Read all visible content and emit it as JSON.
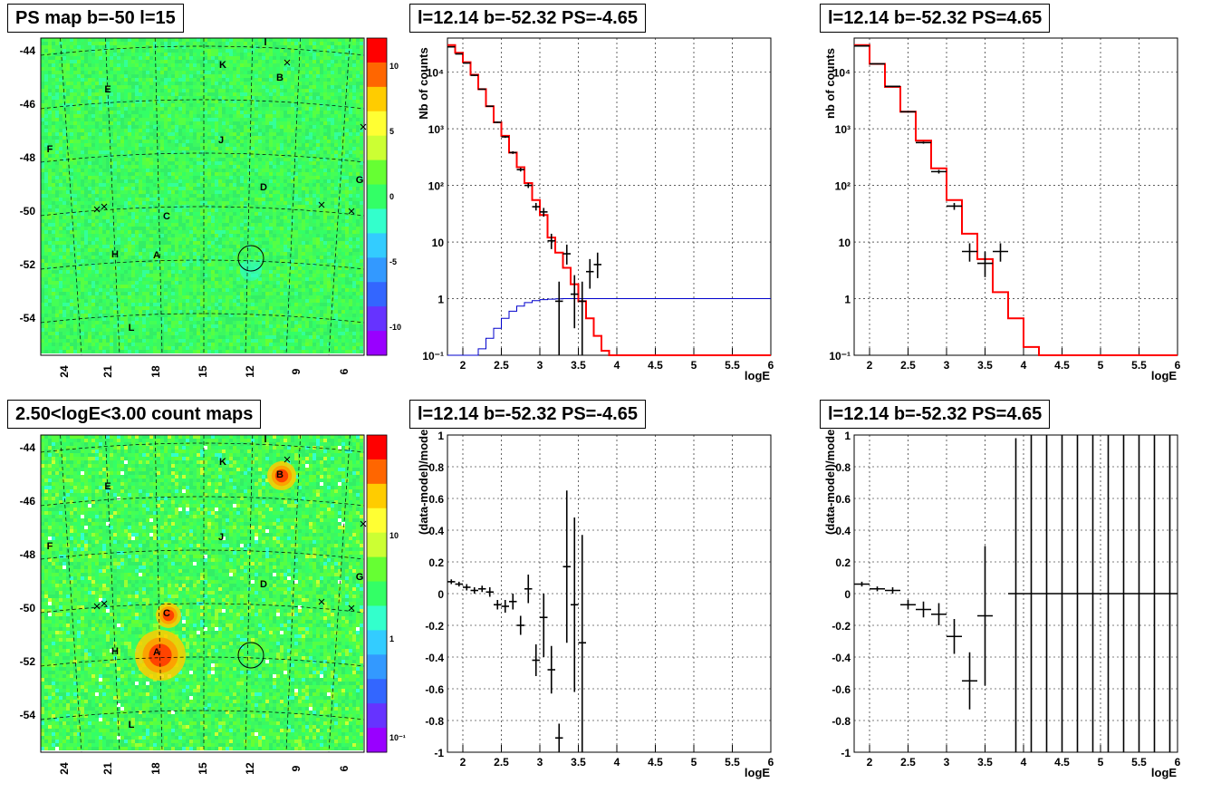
{
  "titles": {
    "map_ps": "PS map b=-50 l=15",
    "map_counts": "2.50<logE<3.00 count maps",
    "spec_neg": "l=12.14 b=-52.32 PS=-4.65",
    "spec_pos": "l=12.14 b=-52.32 PS=4.65",
    "res_neg": "l=12.14 b=-52.32 PS=-4.65",
    "res_pos": "l=12.14 b=-52.32 PS=4.65"
  },
  "maps": {
    "lat_ticks": [
      "-44",
      "-46",
      "-48",
      "-50",
      "-52",
      "-54"
    ],
    "lon_ticks": [
      "24",
      "21",
      "18",
      "15",
      "12",
      "9",
      "6"
    ],
    "source_labels": [
      "I",
      "K",
      "B",
      "E",
      "F",
      "J",
      "D",
      "G",
      "C",
      "H",
      "A",
      "L"
    ],
    "ps_colorbar_ticks": [
      "10",
      "5",
      "0",
      "-5",
      "-10"
    ],
    "ps_colorbar_colors": [
      "#ff0000",
      "#ff6600",
      "#ffcc00",
      "#ffff33",
      "#ccff33",
      "#66ff33",
      "#33ff66",
      "#33ffcc",
      "#33ccff",
      "#3399ff",
      "#3366ff",
      "#6633ff",
      "#9900ff"
    ],
    "count_colorbar_ticks": [
      "10",
      "1",
      "10⁻¹"
    ],
    "count_colorbar_colors": [
      "#ff0000",
      "#ff6600",
      "#ffcc00",
      "#ffff33",
      "#ccff33",
      "#66ff33",
      "#33ff66",
      "#33ffcc",
      "#33ccff",
      "#3399ff",
      "#3366ff",
      "#6633ff",
      "#9900ff"
    ],
    "background_color": "#33ff66"
  },
  "chart_data": [
    {
      "type": "line",
      "panel": "spectrum-ps-negative",
      "title": "l=12.14 b=-52.32 PS=-4.65",
      "xlabel": "logE",
      "ylabel": "Nb of counts",
      "ylog": true,
      "xlim": [
        1.8,
        6.0
      ],
      "ylim": [
        0.1,
        40000
      ],
      "x_ticks": [
        "2",
        "2.5",
        "3",
        "3.5",
        "4",
        "4.5",
        "5",
        "5.5",
        "6"
      ],
      "y_ticks": [
        "10⁻¹",
        "1",
        "10",
        "10²",
        "10³",
        "10⁴"
      ],
      "grid": true,
      "model_red": {
        "edges": [
          1.8,
          1.9,
          2.0,
          2.1,
          2.2,
          2.3,
          2.4,
          2.5,
          2.6,
          2.7,
          2.8,
          2.9,
          3.0,
          3.1,
          3.2,
          3.3,
          3.4,
          3.5,
          3.6,
          3.7,
          3.8,
          3.9,
          4.0,
          6.0
        ],
        "values": [
          30000,
          22000,
          15000,
          9000,
          5000,
          2500,
          1300,
          750,
          380,
          210,
          110,
          55,
          30,
          12,
          6.5,
          3.5,
          1.8,
          0.9,
          0.45,
          0.22,
          0.12,
          0.1,
          0.1
        ]
      },
      "model_blue": {
        "edges": [
          1.8,
          2.1,
          2.2,
          2.3,
          2.4,
          2.5,
          2.6,
          2.7,
          2.8,
          2.9,
          3.0,
          3.1,
          3.2,
          3.3,
          3.4,
          6.0
        ],
        "values": [
          0.1,
          0.1,
          0.13,
          0.2,
          0.3,
          0.45,
          0.6,
          0.74,
          0.85,
          0.92,
          0.96,
          0.98,
          0.99,
          1.0,
          1.0
        ]
      },
      "data_points": [
        {
          "x": 1.85,
          "y": 28000,
          "ylo": 27500,
          "yhi": 28500
        },
        {
          "x": 1.95,
          "y": 21000,
          "ylo": 20600,
          "yhi": 21400
        },
        {
          "x": 2.05,
          "y": 14500,
          "ylo": 14200,
          "yhi": 14800
        },
        {
          "x": 2.15,
          "y": 8800,
          "ylo": 8600,
          "yhi": 9000
        },
        {
          "x": 2.25,
          "y": 5000,
          "ylo": 4900,
          "yhi": 5100
        },
        {
          "x": 2.35,
          "y": 2500,
          "ylo": 2450,
          "yhi": 2550
        },
        {
          "x": 2.45,
          "y": 1300,
          "ylo": 1260,
          "yhi": 1340
        },
        {
          "x": 2.55,
          "y": 720,
          "ylo": 690,
          "yhi": 750
        },
        {
          "x": 2.65,
          "y": 380,
          "ylo": 360,
          "yhi": 400
        },
        {
          "x": 2.75,
          "y": 190,
          "ylo": 176,
          "yhi": 204
        },
        {
          "x": 2.85,
          "y": 100,
          "ylo": 90,
          "yhi": 110
        },
        {
          "x": 2.95,
          "y": 42,
          "ylo": 36,
          "yhi": 49
        },
        {
          "x": 3.05,
          "y": 34,
          "ylo": 28,
          "yhi": 40
        },
        {
          "x": 3.15,
          "y": 10.5,
          "ylo": 7.5,
          "yhi": 14
        },
        {
          "x": 3.25,
          "y": 0.9,
          "ylo": 0.1,
          "yhi": 2.0
        },
        {
          "x": 3.35,
          "y": 6.2,
          "ylo": 4,
          "yhi": 9
        },
        {
          "x": 3.45,
          "y": 1.2,
          "ylo": 0.3,
          "yhi": 2.6
        },
        {
          "x": 3.55,
          "y": 0.9,
          "ylo": 0.1,
          "yhi": 2.0
        },
        {
          "x": 3.65,
          "y": 3.0,
          "ylo": 1.5,
          "yhi": 5
        },
        {
          "x": 3.75,
          "y": 4.0,
          "ylo": 2.3,
          "yhi": 6.5
        }
      ]
    },
    {
      "type": "line",
      "panel": "spectrum-ps-positive",
      "title": "l=12.14 b=-52.32 PS=4.65",
      "xlabel": "logE",
      "ylabel": "nb of counts",
      "ylog": true,
      "xlim": [
        1.8,
        6.0
      ],
      "ylim": [
        0.1,
        40000
      ],
      "x_ticks": [
        "2",
        "2.5",
        "3",
        "3.5",
        "4",
        "4.5",
        "5",
        "5.5",
        "6"
      ],
      "y_ticks": [
        "10⁻¹",
        "1",
        "10",
        "10²",
        "10³",
        "10⁴"
      ],
      "grid": true,
      "model_red": {
        "edges": [
          1.8,
          2.0,
          2.2,
          2.4,
          2.6,
          2.8,
          3.0,
          3.2,
          3.4,
          3.6,
          3.8,
          4.0,
          4.2,
          6.0
        ],
        "values": [
          30000,
          14000,
          5500,
          2000,
          620,
          200,
          55,
          14,
          5,
          1.3,
          0.45,
          0.14,
          0.1
        ]
      },
      "data_points": [
        {
          "x": 1.9,
          "y": 29000,
          "ylo": 28500,
          "yhi": 29500
        },
        {
          "x": 2.1,
          "y": 14000,
          "ylo": 13700,
          "yhi": 14300
        },
        {
          "x": 2.3,
          "y": 5600,
          "ylo": 5450,
          "yhi": 5750
        },
        {
          "x": 2.5,
          "y": 2000,
          "ylo": 1930,
          "yhi": 2070
        },
        {
          "x": 2.7,
          "y": 570,
          "ylo": 545,
          "yhi": 595
        },
        {
          "x": 2.9,
          "y": 175,
          "ylo": 162,
          "yhi": 188
        },
        {
          "x": 3.1,
          "y": 43,
          "ylo": 37,
          "yhi": 49
        },
        {
          "x": 3.3,
          "y": 6.8,
          "ylo": 4.5,
          "yhi": 9.5
        },
        {
          "x": 3.5,
          "y": 4.2,
          "ylo": 2.4,
          "yhi": 6.8
        },
        {
          "x": 3.7,
          "y": 6.8,
          "ylo": 4.5,
          "yhi": 9.5
        }
      ]
    },
    {
      "type": "scatter",
      "panel": "residual-ps-negative",
      "title": "l=12.14 b=-52.32 PS=-4.65",
      "xlabel": "logE",
      "ylabel": "(data-model)/model",
      "xlim": [
        1.8,
        6.0
      ],
      "ylim": [
        -1,
        1
      ],
      "x_ticks": [
        "2",
        "2.5",
        "3",
        "3.5",
        "4",
        "4.5",
        "5",
        "5.5",
        "6"
      ],
      "y_ticks": [
        "1",
        "0.8",
        "0.6",
        "0.4",
        "0.2",
        "0",
        "-0.2",
        "-0.4",
        "-0.6",
        "-0.8",
        "-1"
      ],
      "grid": true,
      "points": [
        {
          "x": 1.85,
          "y": 0.075,
          "ylo": 0.06,
          "yhi": 0.09
        },
        {
          "x": 1.95,
          "y": 0.06,
          "ylo": 0.045,
          "yhi": 0.075
        },
        {
          "x": 2.05,
          "y": 0.04,
          "ylo": 0.02,
          "yhi": 0.06
        },
        {
          "x": 2.15,
          "y": 0.02,
          "ylo": 0.0,
          "yhi": 0.04
        },
        {
          "x": 2.25,
          "y": 0.03,
          "ylo": 0.01,
          "yhi": 0.05
        },
        {
          "x": 2.35,
          "y": 0.01,
          "ylo": -0.02,
          "yhi": 0.04
        },
        {
          "x": 2.45,
          "y": -0.07,
          "ylo": -0.1,
          "yhi": -0.04
        },
        {
          "x": 2.55,
          "y": -0.08,
          "ylo": -0.12,
          "yhi": -0.04
        },
        {
          "x": 2.65,
          "y": -0.05,
          "ylo": -0.1,
          "yhi": 0.0
        },
        {
          "x": 2.75,
          "y": -0.2,
          "ylo": -0.26,
          "yhi": -0.14
        },
        {
          "x": 2.85,
          "y": 0.03,
          "ylo": -0.06,
          "yhi": 0.12
        },
        {
          "x": 2.95,
          "y": -0.42,
          "ylo": -0.52,
          "yhi": -0.32
        },
        {
          "x": 3.05,
          "y": -0.15,
          "ylo": -0.4,
          "yhi": 0.0
        },
        {
          "x": 3.15,
          "y": -0.48,
          "ylo": -0.63,
          "yhi": -0.33
        },
        {
          "x": 3.25,
          "y": -0.91,
          "ylo": -1.0,
          "yhi": -0.82
        },
        {
          "x": 3.35,
          "y": 0.17,
          "ylo": -0.31,
          "yhi": 0.65
        },
        {
          "x": 3.45,
          "y": -0.07,
          "ylo": -0.62,
          "yhi": 0.48
        },
        {
          "x": 3.55,
          "y": -0.31,
          "ylo": -1.0,
          "yhi": 0.37
        }
      ]
    },
    {
      "type": "scatter",
      "panel": "residual-ps-positive",
      "title": "l=12.14 b=-52.32 PS=4.65",
      "xlabel": "logE",
      "ylabel": "(data-model)/model",
      "xlim": [
        1.8,
        6.0
      ],
      "ylim": [
        -1,
        1
      ],
      "x_ticks": [
        "2",
        "2.5",
        "3",
        "3.5",
        "4",
        "4.5",
        "5",
        "5.5",
        "6"
      ],
      "y_ticks": [
        "1",
        "0.8",
        "0.6",
        "0.4",
        "0.2",
        "0",
        "-0.2",
        "-0.4",
        "-0.6",
        "-0.8",
        "-1"
      ],
      "grid": true,
      "points": [
        {
          "x": 1.9,
          "y": 0.06,
          "ylo": 0.045,
          "yhi": 0.075
        },
        {
          "x": 2.1,
          "y": 0.03,
          "ylo": 0.015,
          "yhi": 0.045
        },
        {
          "x": 2.3,
          "y": 0.02,
          "ylo": 0.0,
          "yhi": 0.04
        },
        {
          "x": 2.5,
          "y": -0.07,
          "ylo": -0.1,
          "yhi": -0.04
        },
        {
          "x": 2.7,
          "y": -0.1,
          "ylo": -0.15,
          "yhi": -0.05
        },
        {
          "x": 2.9,
          "y": -0.13,
          "ylo": -0.2,
          "yhi": -0.06
        },
        {
          "x": 3.1,
          "y": -0.27,
          "ylo": -0.38,
          "yhi": -0.16
        },
        {
          "x": 3.3,
          "y": -0.55,
          "ylo": -0.73,
          "yhi": -0.37
        },
        {
          "x": 3.5,
          "y": -0.14,
          "ylo": -0.58,
          "yhi": 0.3
        },
        {
          "x": 3.9,
          "y": 0.0,
          "ylo": -1.0,
          "yhi": 0.98
        },
        {
          "x": 4.1,
          "y": 0.0,
          "ylo": -1.0,
          "yhi": 1.0
        },
        {
          "x": 4.3,
          "y": 0.0,
          "ylo": -1.0,
          "yhi": 1.0
        },
        {
          "x": 4.5,
          "y": 0.0,
          "ylo": -1.0,
          "yhi": 1.0
        },
        {
          "x": 4.7,
          "y": 0.0,
          "ylo": -1.0,
          "yhi": 1.0
        },
        {
          "x": 4.9,
          "y": 0.0,
          "ylo": -1.0,
          "yhi": 1.0
        },
        {
          "x": 5.1,
          "y": 0.0,
          "ylo": -1.0,
          "yhi": 1.0
        },
        {
          "x": 5.3,
          "y": 0.0,
          "ylo": -1.0,
          "yhi": 1.0
        },
        {
          "x": 5.5,
          "y": 0.0,
          "ylo": -1.0,
          "yhi": 1.0
        },
        {
          "x": 5.7,
          "y": 0.0,
          "ylo": -1.0,
          "yhi": 1.0
        },
        {
          "x": 5.9,
          "y": 0.0,
          "ylo": -1.0,
          "yhi": 1.0
        }
      ]
    }
  ]
}
